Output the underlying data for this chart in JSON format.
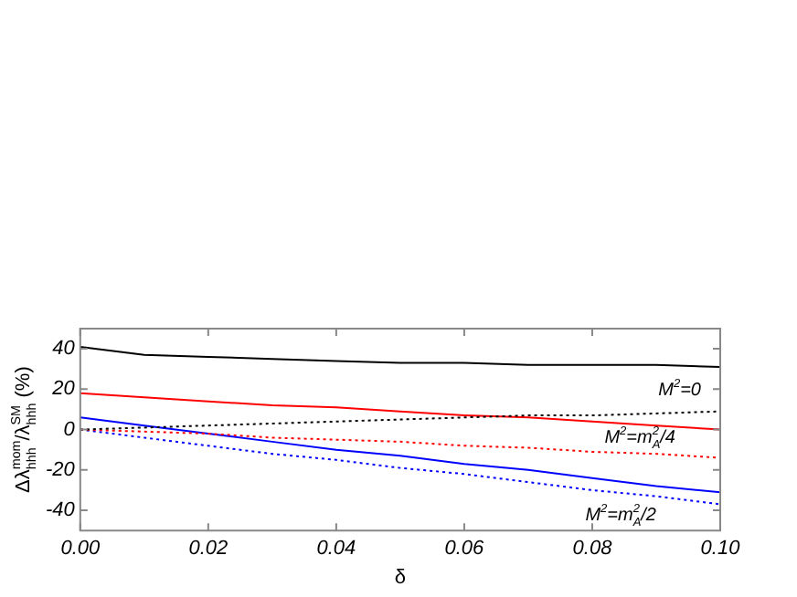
{
  "chart_data": {
    "type": "line",
    "xlabel": "δ",
    "ylabel": "Δλ$_{hhh}$$^{mom}$/λ$_{hhh}$$^{SM}$ (%)",
    "x": [
      0,
      0.01,
      0.02,
      0.03,
      0.04,
      0.05,
      0.06,
      0.07,
      0.08,
      0.09,
      0.1
    ],
    "xlim": [
      0,
      0.1
    ],
    "xticks": [
      {
        "value": 0,
        "label": "0.00"
      },
      {
        "value": 0.02,
        "label": "0.02"
      },
      {
        "value": 0.04,
        "label": "0.04"
      },
      {
        "value": 0.06,
        "label": "0.06"
      },
      {
        "value": 0.08,
        "label": "0.08"
      },
      {
        "value": 0.1,
        "label": "0.10"
      }
    ],
    "ylim": [
      -50,
      50
    ],
    "yticks": [
      -40,
      -20,
      0,
      20,
      40
    ],
    "marker": "none",
    "legend": false,
    "series": [
      {
        "color": "#000000",
        "line_style": "solid",
        "values": [
          41,
          37,
          36,
          35,
          34,
          33,
          33,
          32,
          32,
          32,
          31
        ]
      },
      {
        "color": "#000000",
        "line_style": "dotted",
        "values": [
          0,
          1,
          2,
          3,
          4,
          5,
          6,
          7,
          7,
          8,
          9
        ]
      },
      {
        "color": "#ff0000",
        "line_style": "solid",
        "values": [
          18,
          16,
          14,
          12,
          11,
          9,
          7,
          6,
          4,
          2,
          0
        ]
      },
      {
        "color": "#ff0000",
        "line_style": "dotted",
        "values": [
          0,
          -1,
          -2,
          -4,
          -5,
          -6,
          -8,
          -9,
          -11,
          -12,
          -14
        ]
      },
      {
        "color": "#0000ff",
        "line_style": "solid",
        "values": [
          6,
          2,
          -2,
          -6,
          -10,
          -13,
          -17,
          -20,
          -24,
          -28,
          -31
        ]
      },
      {
        "color": "#0000ff",
        "line_style": "dotted",
        "values": [
          0,
          -4,
          -8,
          -12,
          -15,
          -19,
          -22,
          -26,
          -30,
          -33,
          -37
        ]
      }
    ],
    "annotations": [
      "M$^{2}$=0",
      "M$^{2}$=m$_{A}$$^{2}$/4",
      "M$^{2}$=m$_{A}$$^{2}$/2"
    ]
  }
}
